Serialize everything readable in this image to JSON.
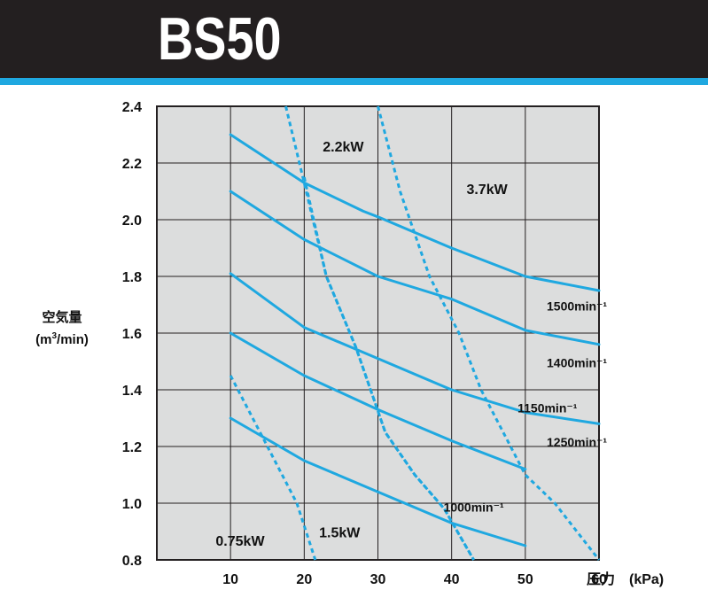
{
  "header": {
    "title": "BS50",
    "background": "#231f20",
    "stripe_color": "#1fa8e0"
  },
  "chart_data": {
    "type": "line",
    "title": "BS50",
    "xlabel": "圧力　(kPa)",
    "ylabel": "空気量",
    "ylabel_unit_prefix": "(m",
    "ylabel_unit_exp": "3",
    "ylabel_unit_suffix": "/min)",
    "xlim": [
      0,
      60
    ],
    "ylim": [
      0.8,
      2.4
    ],
    "x_ticks": [
      "10",
      "20",
      "30",
      "40",
      "50",
      "60"
    ],
    "y_ticks": [
      "0.8",
      "1.0",
      "1.2",
      "1.4",
      "1.6",
      "1.8",
      "2.0",
      "2.2",
      "2.4"
    ],
    "grid": true,
    "plot_background": "#dcdddd",
    "line_color": "#1fa8e0",
    "speed_series": [
      {
        "name": "1500min⁻¹",
        "x": [
          10,
          20,
          28,
          30,
          40,
          50,
          60
        ],
        "y": [
          2.3,
          2.13,
          2.03,
          2.01,
          1.9,
          1.8,
          1.75
        ]
      },
      {
        "name": "1400min⁻¹",
        "x": [
          10,
          20,
          30,
          40,
          50,
          60
        ],
        "y": [
          2.1,
          1.93,
          1.8,
          1.72,
          1.61,
          1.56
        ]
      },
      {
        "name": "1250min⁻¹",
        "x": [
          10,
          20,
          30,
          40,
          50,
          60
        ],
        "y": [
          1.81,
          1.62,
          1.51,
          1.4,
          1.32,
          1.28
        ]
      },
      {
        "name": "1150min⁻¹",
        "x": [
          10,
          20,
          30,
          40,
          50
        ],
        "y": [
          1.6,
          1.45,
          1.33,
          1.22,
          1.12
        ]
      },
      {
        "name": "1000min⁻¹",
        "x": [
          10,
          20,
          30,
          40,
          50
        ],
        "y": [
          1.3,
          1.15,
          1.04,
          0.93,
          0.85
        ]
      }
    ],
    "power_series": [
      {
        "name": "0.75kW",
        "x": [
          10,
          15,
          19,
          21.5
        ],
        "y": [
          1.45,
          1.2,
          1.0,
          0.8
        ]
      },
      {
        "name": "1.5kW",
        "x": [
          20,
          23,
          27,
          31,
          35,
          39,
          43
        ],
        "y": [
          2.15,
          1.8,
          1.55,
          1.25,
          1.1,
          0.98,
          0.8
        ]
      },
      {
        "name": "2.2kW",
        "x": [
          17.5,
          20,
          23,
          27,
          31,
          35,
          39,
          43
        ],
        "y": [
          2.4,
          2.13,
          1.8,
          1.55,
          1.25,
          1.1,
          0.98,
          0.8
        ]
      },
      {
        "name": "3.7kW",
        "x": [
          30,
          33,
          37,
          41,
          44,
          47,
          50,
          54,
          60
        ],
        "y": [
          2.4,
          2.1,
          1.8,
          1.6,
          1.4,
          1.25,
          1.1,
          1.0,
          0.8
        ]
      }
    ],
    "labels": {
      "speed": [
        "1500min⁻¹",
        "1400min⁻¹",
        "1250min⁻¹",
        "1150min⁻¹",
        "1000min⁻¹"
      ],
      "power": [
        "2.2kW",
        "3.7kW",
        "0.75kW",
        "1.5kW"
      ]
    }
  }
}
